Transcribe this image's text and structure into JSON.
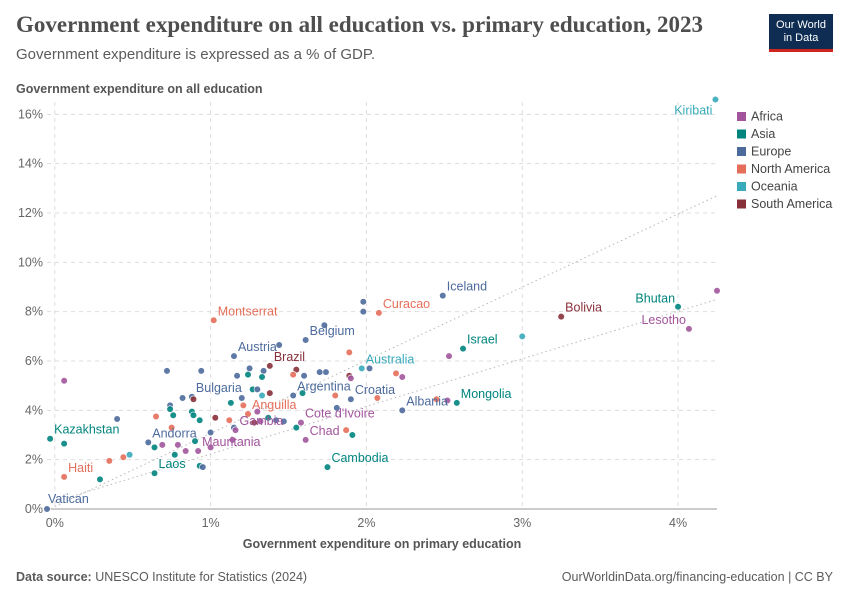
{
  "header": {
    "title": "Government expenditure on all education vs. primary education, 2023",
    "subtitle": "Government expenditure is expressed as a % of GDP.",
    "logo_line1": "Our World",
    "logo_line2": "in Data"
  },
  "footer": {
    "source_label": "Data source:",
    "source_text": "UNESCO Institute for Statistics (2024)",
    "url_text": "OurWorldinData.org/financing-education | CC BY"
  },
  "chart_data": {
    "type": "scatter",
    "title": "Government expenditure on all education vs. primary education, 2023",
    "subtitle": "Government expenditure is expressed as a % of GDP.",
    "xlabel": "Government expenditure on primary education",
    "ylabel": "Government expenditure on all education",
    "xlim": [
      -0.05,
      4.25
    ],
    "ylim": [
      0,
      16.5
    ],
    "x_ticks": [
      0,
      1,
      2,
      3,
      4
    ],
    "x_tick_labels": [
      "0%",
      "1%",
      "2%",
      "3%",
      "4%"
    ],
    "y_ticks": [
      0,
      2,
      4,
      6,
      8,
      10,
      12,
      14,
      16
    ],
    "y_tick_labels": [
      "0%",
      "2%",
      "4%",
      "6%",
      "8%",
      "10%",
      "12%",
      "14%",
      "16%"
    ],
    "grid": true,
    "legend_position": "right",
    "trend_lines": [
      {
        "x": [
          0,
          4.25
        ],
        "y": [
          0.1,
          12.7
        ]
      },
      {
        "x": [
          0,
          4.25
        ],
        "y": [
          0.3,
          8.5
        ]
      }
    ],
    "colors": {
      "Africa": "#a2559c",
      "Asia": "#00847e",
      "Europe": "#4c6a9c",
      "North America": "#e56e5a",
      "Oceania": "#38aaba",
      "South America": "#883039"
    },
    "legend": [
      "Africa",
      "Asia",
      "Europe",
      "North America",
      "Oceania",
      "South America"
    ],
    "points": [
      {
        "x": 4.24,
        "y": 16.6,
        "region": "Oceania",
        "label": "Kiribati"
      },
      {
        "x": 4.25,
        "y": 8.85,
        "region": "Africa"
      },
      {
        "x": 4.0,
        "y": 8.2,
        "region": "Asia",
        "label": "Bhutan"
      },
      {
        "x": 4.07,
        "y": 7.3,
        "region": "Africa",
        "label": "Lesotho"
      },
      {
        "x": 3.25,
        "y": 7.8,
        "region": "South America",
        "label": "Bolivia"
      },
      {
        "x": 3.0,
        "y": 7.0,
        "region": "Oceania"
      },
      {
        "x": 2.49,
        "y": 8.65,
        "region": "Europe",
        "label": "Iceland"
      },
      {
        "x": 2.62,
        "y": 6.5,
        "region": "Asia",
        "label": "Israel"
      },
      {
        "x": 2.53,
        "y": 6.2,
        "region": "Africa"
      },
      {
        "x": 2.58,
        "y": 4.3,
        "region": "Asia",
        "label": "Mongolia"
      },
      {
        "x": 2.52,
        "y": 4.4,
        "region": "Africa"
      },
      {
        "x": 2.45,
        "y": 4.45,
        "region": "North America"
      },
      {
        "x": 2.23,
        "y": 4.0,
        "region": "Europe",
        "label": "Albania"
      },
      {
        "x": 2.08,
        "y": 7.95,
        "region": "North America",
        "label": "Curacao"
      },
      {
        "x": 1.98,
        "y": 8.4,
        "region": "Europe"
      },
      {
        "x": 1.98,
        "y": 8.0,
        "region": "Europe"
      },
      {
        "x": 1.97,
        "y": 5.7,
        "region": "Oceania",
        "label": "Australia"
      },
      {
        "x": 2.02,
        "y": 5.7,
        "region": "Europe"
      },
      {
        "x": 2.19,
        "y": 5.5,
        "region": "North America"
      },
      {
        "x": 2.23,
        "y": 5.35,
        "region": "Africa"
      },
      {
        "x": 2.07,
        "y": 4.5,
        "region": "North America"
      },
      {
        "x": 1.9,
        "y": 4.45,
        "region": "Europe",
        "label": "Croatia"
      },
      {
        "x": 1.89,
        "y": 5.4,
        "region": "South America"
      },
      {
        "x": 1.9,
        "y": 5.3,
        "region": "Africa"
      },
      {
        "x": 1.89,
        "y": 6.35,
        "region": "North America"
      },
      {
        "x": 1.73,
        "y": 7.45,
        "region": "Europe"
      },
      {
        "x": 1.61,
        "y": 6.85,
        "region": "Europe",
        "label": "Belgium"
      },
      {
        "x": 1.74,
        "y": 5.55,
        "region": "Europe"
      },
      {
        "x": 1.7,
        "y": 5.55,
        "region": "Europe"
      },
      {
        "x": 1.8,
        "y": 4.6,
        "region": "North America"
      },
      {
        "x": 1.81,
        "y": 4.1,
        "region": "Europe"
      },
      {
        "x": 1.87,
        "y": 3.2,
        "region": "North America"
      },
      {
        "x": 1.91,
        "y": 3.0,
        "region": "Asia"
      },
      {
        "x": 1.75,
        "y": 1.7,
        "region": "Asia",
        "label": "Cambodia"
      },
      {
        "x": 1.61,
        "y": 2.8,
        "region": "Africa",
        "label": "Chad"
      },
      {
        "x": 1.55,
        "y": 3.3,
        "region": "Asia"
      },
      {
        "x": 1.58,
        "y": 3.5,
        "region": "Africa",
        "label": "Cote d'Ivoire"
      },
      {
        "x": 1.47,
        "y": 3.55,
        "region": "Europe"
      },
      {
        "x": 1.59,
        "y": 4.7,
        "region": "Asia"
      },
      {
        "x": 1.53,
        "y": 4.6,
        "region": "Europe",
        "label": "Argentina"
      },
      {
        "x": 1.55,
        "y": 5.65,
        "region": "South America"
      },
      {
        "x": 1.53,
        "y": 5.45,
        "region": "North America"
      },
      {
        "x": 1.6,
        "y": 5.4,
        "region": "Europe"
      },
      {
        "x": 1.38,
        "y": 5.8,
        "region": "South America",
        "label": "Brazil"
      },
      {
        "x": 1.44,
        "y": 6.65,
        "region": "Europe"
      },
      {
        "x": 1.34,
        "y": 5.6,
        "region": "Europe"
      },
      {
        "x": 1.33,
        "y": 5.35,
        "region": "Asia"
      },
      {
        "x": 1.25,
        "y": 5.7,
        "region": "Europe"
      },
      {
        "x": 1.24,
        "y": 5.45,
        "region": "Asia"
      },
      {
        "x": 1.17,
        "y": 5.4,
        "region": "Europe"
      },
      {
        "x": 1.15,
        "y": 6.2,
        "region": "Europe",
        "label": "Austria"
      },
      {
        "x": 1.02,
        "y": 7.65,
        "region": "North America",
        "label": "Montserrat"
      },
      {
        "x": 0.94,
        "y": 5.6,
        "region": "Europe"
      },
      {
        "x": 0.72,
        "y": 5.6,
        "region": "Europe"
      },
      {
        "x": 0.06,
        "y": 5.2,
        "region": "Africa"
      },
      {
        "x": 1.27,
        "y": 4.85,
        "region": "Asia"
      },
      {
        "x": 1.3,
        "y": 4.85,
        "region": "Europe"
      },
      {
        "x": 1.38,
        "y": 4.7,
        "region": "South America"
      },
      {
        "x": 1.33,
        "y": 4.6,
        "region": "Oceania"
      },
      {
        "x": 1.2,
        "y": 4.5,
        "region": "Europe"
      },
      {
        "x": 1.13,
        "y": 4.3,
        "region": "Asia"
      },
      {
        "x": 1.21,
        "y": 4.2,
        "region": "North America"
      },
      {
        "x": 1.3,
        "y": 3.95,
        "region": "Africa"
      },
      {
        "x": 1.24,
        "y": 3.85,
        "region": "North America",
        "label": "Anguilla"
      },
      {
        "x": 1.37,
        "y": 3.7,
        "region": "Asia"
      },
      {
        "x": 1.42,
        "y": 3.6,
        "region": "Europe"
      },
      {
        "x": 1.28,
        "y": 3.5,
        "region": "South America"
      },
      {
        "x": 1.32,
        "y": 3.55,
        "region": "Africa"
      },
      {
        "x": 1.12,
        "y": 3.6,
        "region": "North America"
      },
      {
        "x": 1.03,
        "y": 3.7,
        "region": "South America"
      },
      {
        "x": 1.15,
        "y": 3.3,
        "region": "Europe"
      },
      {
        "x": 1.16,
        "y": 3.2,
        "region": "Africa",
        "label": "Gambia"
      },
      {
        "x": 1.14,
        "y": 2.8,
        "region": "Africa"
      },
      {
        "x": 0.88,
        "y": 4.55,
        "region": "Europe",
        "label": "Bulgaria"
      },
      {
        "x": 0.89,
        "y": 4.45,
        "region": "South America"
      },
      {
        "x": 0.82,
        "y": 4.5,
        "region": "Europe"
      },
      {
        "x": 0.74,
        "y": 4.2,
        "region": "Europe"
      },
      {
        "x": 0.74,
        "y": 4.05,
        "region": "Asia"
      },
      {
        "x": 0.88,
        "y": 3.95,
        "region": "Asia"
      },
      {
        "x": 0.89,
        "y": 3.8,
        "region": "Asia"
      },
      {
        "x": 0.76,
        "y": 3.8,
        "region": "Asia"
      },
      {
        "x": 0.65,
        "y": 3.75,
        "region": "North America"
      },
      {
        "x": 0.4,
        "y": 3.65,
        "region": "Europe"
      },
      {
        "x": 0.93,
        "y": 3.6,
        "region": "Asia"
      },
      {
        "x": 0.75,
        "y": 3.3,
        "region": "North America"
      },
      {
        "x": 1.0,
        "y": 3.1,
        "region": "Europe"
      },
      {
        "x": 0.6,
        "y": 2.7,
        "region": "Europe",
        "label": "Andorra"
      },
      {
        "x": 0.69,
        "y": 2.6,
        "region": "Africa"
      },
      {
        "x": 0.79,
        "y": 2.6,
        "region": "Africa"
      },
      {
        "x": 0.9,
        "y": 2.75,
        "region": "Asia"
      },
      {
        "x": 0.64,
        "y": 2.5,
        "region": "Asia"
      },
      {
        "x": 0.92,
        "y": 2.35,
        "region": "Africa",
        "label": "Mauritania"
      },
      {
        "x": 0.84,
        "y": 2.35,
        "region": "Africa"
      },
      {
        "x": 1.0,
        "y": 2.5,
        "region": "Africa"
      },
      {
        "x": 0.77,
        "y": 2.2,
        "region": "Asia"
      },
      {
        "x": 0.48,
        "y": 2.2,
        "region": "Oceania"
      },
      {
        "x": 0.44,
        "y": 2.1,
        "region": "North America"
      },
      {
        "x": 0.35,
        "y": 1.95,
        "region": "North America"
      },
      {
        "x": 0.93,
        "y": 1.75,
        "region": "Asia"
      },
      {
        "x": 0.95,
        "y": 1.7,
        "region": "Europe"
      },
      {
        "x": 0.64,
        "y": 1.45,
        "region": "Asia",
        "label": "Laos"
      },
      {
        "x": 0.29,
        "y": 1.2,
        "region": "Asia"
      },
      {
        "x": 0.06,
        "y": 1.3,
        "region": "North America",
        "label": "Haiti"
      },
      {
        "x": 0.06,
        "y": 2.65,
        "region": "Asia"
      },
      {
        "x": -0.03,
        "y": 2.85,
        "region": "Asia",
        "label": "Kazakhstan"
      },
      {
        "x": -0.05,
        "y": 0.0,
        "region": "Europe",
        "label": "Vatican"
      }
    ]
  }
}
